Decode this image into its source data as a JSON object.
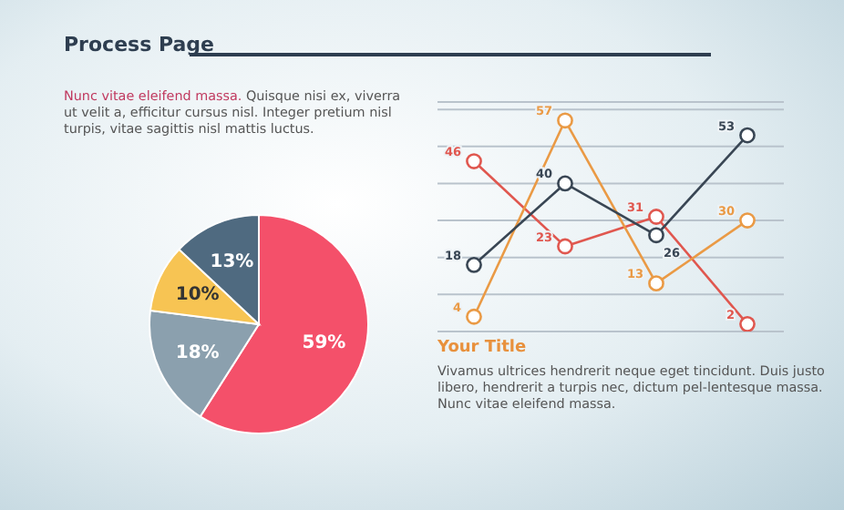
{
  "chart_data": [
    {
      "type": "pie",
      "title": "Process Page",
      "categories": [
        null,
        null,
        null,
        null
      ],
      "values": [
        59,
        18,
        10,
        13
      ],
      "colors": [
        "#f4506a",
        "#8ba0ae",
        "#f7c453",
        "#4f6a80"
      ],
      "value_labels": [
        "59%",
        "18%",
        "10%",
        "13%"
      ],
      "annotations": [
        "Nunc vitae eleifend massa. Quisque nisi ex, viverra ut velit a, efficitur cursus nisl. Integer pretium nisl turpis, vitae sagittis nisl mattis luctus."
      ]
    },
    {
      "type": "line",
      "categories": [
        null,
        null,
        null,
        null
      ],
      "ylim": [
        0,
        62
      ],
      "yticks": [
        {
          "value": 0,
          "label": null
        },
        {
          "value": 10,
          "label": null
        },
        {
          "value": 20,
          "label": null
        },
        {
          "value": 30,
          "label": null
        },
        {
          "value": 40,
          "label": null
        },
        {
          "value": 50,
          "label": null
        },
        {
          "value": 60,
          "label": null
        }
      ],
      "grid": "y",
      "marker": "circle",
      "data_labels": true,
      "series": [
        {
          "color": "#e0574f",
          "values": [
            46,
            23,
            31,
            2
          ]
        },
        {
          "color": "#ea9a45",
          "values": [
            4,
            57,
            13,
            30
          ]
        },
        {
          "color": "#394654",
          "values": [
            18,
            40,
            26,
            53
          ]
        }
      ],
      "annotations": [
        "Your Title",
        "Vivamus ultrices hendrerit neque eget tincidunt. Duis justo libero, hendrerit a turpis nec, dictum pel-lentesque massa. Nunc vitae eleifend massa."
      ]
    }
  ]
}
